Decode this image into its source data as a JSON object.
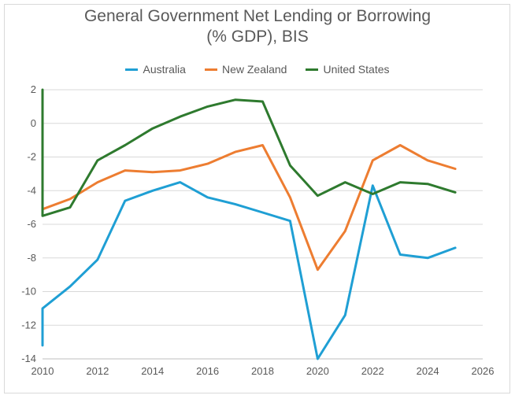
{
  "chart_data": {
    "type": "line",
    "title_line1": "General Government Net Lending or Borrowing",
    "title_line2": "(% GDP), BIS",
    "xlabel": "",
    "ylabel": "",
    "xlim": [
      2010,
      2026
    ],
    "ylim": [
      -14,
      2
    ],
    "x_ticks": [
      2010,
      2012,
      2014,
      2016,
      2018,
      2020,
      2022,
      2024,
      2026
    ],
    "y_ticks": [
      2,
      0,
      -2,
      -4,
      -6,
      -8,
      -10,
      -12,
      -14
    ],
    "grid": "horizontal",
    "legend_position": "top",
    "x": [
      2010,
      2011,
      2012,
      2013,
      2014,
      2015,
      2016,
      2017,
      2018,
      2019,
      2020,
      2021,
      2022,
      2023,
      2024,
      2025
    ],
    "series": [
      {
        "name": "Australia",
        "color": "#1f9fd4",
        "values": [
          -11.0,
          -9.7,
          -8.1,
          -4.6,
          -4.0,
          -3.5,
          -4.4,
          -4.8,
          -5.3,
          -5.8,
          -14.0,
          -11.4,
          -3.7,
          -7.8,
          -8.0,
          -7.4
        ]
      },
      {
        "name": "New Zealand",
        "color": "#ed7d31",
        "values": [
          -5.1,
          -4.5,
          -3.5,
          -2.8,
          -2.9,
          -2.8,
          -2.4,
          -1.7,
          -1.3,
          -4.4,
          -8.7,
          -6.4,
          -2.2,
          -1.3,
          -2.2,
          -2.7
        ]
      },
      {
        "name": "United States",
        "color": "#2e7a2e",
        "values": [
          -5.5,
          -5.0,
          -2.2,
          -1.3,
          -0.3,
          0.4,
          1.0,
          1.4,
          1.3,
          -2.5,
          -4.3,
          -3.5,
          -4.2,
          -3.5,
          -3.6,
          -4.1
        ]
      }
    ]
  }
}
